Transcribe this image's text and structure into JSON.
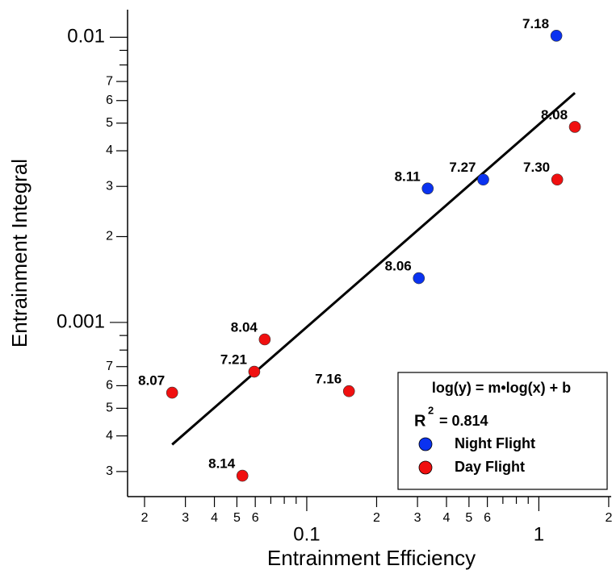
{
  "chart_data": {
    "type": "scatter",
    "x_label": "Entrainment Efficiency",
    "y_label": "Entrainment Integral",
    "log_x": true,
    "log_y": true,
    "xlim": [
      0.0169,
      2.05
    ],
    "ylim": [
      0.000245,
      0.0125
    ],
    "xticks": [
      {
        "value": 0.02,
        "label": "2"
      },
      {
        "value": 0.03,
        "label": "3"
      },
      {
        "value": 0.04,
        "label": "4"
      },
      {
        "value": 0.05,
        "label": "5"
      },
      {
        "value": 0.06,
        "label": "6"
      },
      0.1,
      {
        "value": 0.2,
        "label": "2"
      },
      {
        "value": 0.3,
        "label": "3"
      },
      {
        "value": 0.4,
        "label": "4"
      },
      {
        "value": 0.5,
        "label": "5"
      },
      {
        "value": 0.6,
        "label": "6"
      },
      1,
      2
    ],
    "xminor_ticks": [
      0.07,
      0.08,
      0.09,
      0.7,
      0.8,
      0.9
    ],
    "yticks": [
      {
        "value": 0.0003,
        "label": "3"
      },
      {
        "value": 0.0004,
        "label": "4"
      },
      {
        "value": 0.0005,
        "label": "5"
      },
      {
        "value": 0.0006,
        "label": "6"
      },
      {
        "value": 0.0007,
        "label": "7"
      },
      0.001,
      {
        "value": 0.002,
        "label": "2"
      },
      {
        "value": 0.003,
        "label": "3"
      },
      {
        "value": 0.004,
        "label": "4"
      },
      {
        "value": 0.005,
        "label": "5"
      },
      {
        "value": 0.006,
        "label": "6"
      },
      {
        "value": 0.007,
        "label": "7"
      },
      0.01
    ],
    "yminor_ticks": [
      0.0008,
      0.0009,
      0.008,
      0.009
    ],
    "series": [
      {
        "name": "Night Flight",
        "color": "#0a32f0",
        "x": [
          1.19,
          0.576,
          0.332,
          0.304
        ],
        "values": [
          0.01013,
          0.00317,
          0.00295,
          0.00143
        ],
        "labels": [
          "7.18",
          "7.27",
          "8.11",
          "8.06"
        ]
      },
      {
        "name": "Day Flight",
        "color": "#f01010",
        "x": [
          1.43,
          1.2,
          0.0659,
          0.0594,
          0.0263,
          0.152,
          0.0528
        ],
        "values": [
          0.00485,
          0.00317,
          0.000872,
          0.000672,
          0.000567,
          0.000574,
          0.00029
        ],
        "labels": [
          "8.08",
          "7.30",
          "8.04",
          "7.21",
          "8.07",
          "7.16",
          "8.14"
        ]
      }
    ],
    "fit": {
      "color": "#000000",
      "x": [
        0.0263,
        1.43
      ],
      "values": [
        0.000373,
        0.00638
      ]
    },
    "legend": {
      "title": "log(y) = m•log(x) + b",
      "r2_symbol": "R",
      "r2_exponent": "2",
      "r2_text": "= 0.814"
    },
    "legend_position": "bottom-right"
  }
}
